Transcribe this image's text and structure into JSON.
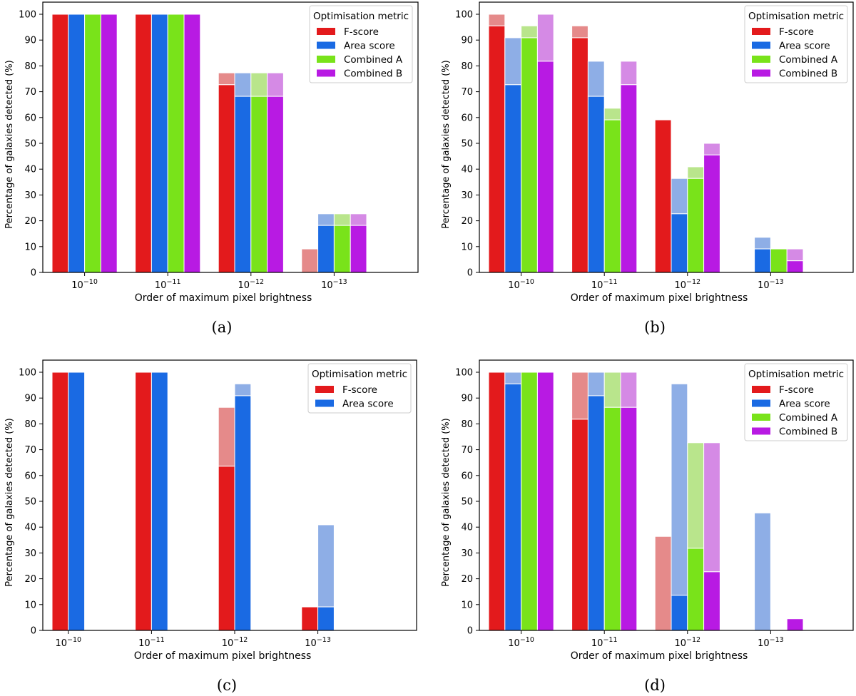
{
  "figure": {
    "axis_label_x": "Order of maximum pixel brightness",
    "axis_label_y": "Percentage of galaxies detected (%)",
    "legend_title": "Optimisation metric"
  },
  "colors": {
    "F-score": {
      "solid": "#e31a1c",
      "light": "#e58a8a"
    },
    "Area score": {
      "solid": "#1a6ae3",
      "light": "#8eaee6"
    },
    "Combined A": {
      "solid": "#79e31a",
      "light": "#b9e58c"
    },
    "Combined B": {
      "solid": "#b81ae3",
      "light": "#d58ae5"
    }
  },
  "chart_data": [
    {
      "panel_label": "(a)",
      "type": "bar",
      "stacked_note": "solid = lower value, light = upper value",
      "xlabel": "Order of maximum pixel brightness",
      "ylabel": "Percentage of galaxies detected (%)",
      "ylim": [
        0,
        100
      ],
      "yticks": [
        0,
        10,
        20,
        30,
        40,
        50,
        60,
        70,
        80,
        90,
        100
      ],
      "categories": [
        {
          "base": "10",
          "exp": "−10"
        },
        {
          "base": "10",
          "exp": "−11"
        },
        {
          "base": "10",
          "exp": "−12"
        },
        {
          "base": "10",
          "exp": "−13"
        }
      ],
      "legend": {
        "title": "Optimisation metric",
        "placement": "top-right"
      },
      "series": [
        {
          "name": "F-score",
          "solid": [
            100,
            100,
            72.7,
            0
          ],
          "light": [
            100,
            100,
            77.3,
            9.1
          ]
        },
        {
          "name": "Area score",
          "solid": [
            100,
            100,
            68.2,
            18.2
          ],
          "light": [
            100,
            100,
            77.3,
            22.7
          ]
        },
        {
          "name": "Combined A",
          "solid": [
            100,
            100,
            68.2,
            18.2
          ],
          "light": [
            100,
            100,
            77.3,
            22.7
          ]
        },
        {
          "name": "Combined B",
          "solid": [
            100,
            100,
            68.2,
            18.2
          ],
          "light": [
            100,
            100,
            77.3,
            22.7
          ]
        }
      ]
    },
    {
      "panel_label": "(b)",
      "type": "bar",
      "stacked_note": "solid = lower value, light = upper value",
      "xlabel": "Order of maximum pixel brightness",
      "ylabel": "Percentage of galaxies detected (%)",
      "ylim": [
        0,
        100
      ],
      "yticks": [
        0,
        10,
        20,
        30,
        40,
        50,
        60,
        70,
        80,
        90,
        100
      ],
      "categories": [
        {
          "base": "10",
          "exp": "−10"
        },
        {
          "base": "10",
          "exp": "−11"
        },
        {
          "base": "10",
          "exp": "−12"
        },
        {
          "base": "10",
          "exp": "−13"
        }
      ],
      "legend": {
        "title": "Optimisation metric",
        "placement": "top-right"
      },
      "series": [
        {
          "name": "F-score",
          "solid": [
            95.5,
            90.9,
            59.1,
            0
          ],
          "light": [
            100,
            95.5,
            59.1,
            0
          ]
        },
        {
          "name": "Area score",
          "solid": [
            72.7,
            68.2,
            22.7,
            9.1
          ],
          "light": [
            90.9,
            81.8,
            36.4,
            13.6
          ]
        },
        {
          "name": "Combined A",
          "solid": [
            90.9,
            59.1,
            36.4,
            9.1
          ],
          "light": [
            95.5,
            63.6,
            40.9,
            9.1
          ]
        },
        {
          "name": "Combined B",
          "solid": [
            81.8,
            72.7,
            45.5,
            4.5
          ],
          "light": [
            100,
            81.8,
            50,
            9.1
          ]
        }
      ]
    },
    {
      "panel_label": "(c)",
      "type": "bar",
      "stacked_note": "solid = lower value, light = upper value",
      "xlabel": "Order of maximum pixel brightness",
      "ylabel": "Percentage of galaxies detected (%)",
      "ylim": [
        0,
        100
      ],
      "yticks": [
        0,
        10,
        20,
        30,
        40,
        50,
        60,
        70,
        80,
        90,
        100
      ],
      "categories": [
        {
          "base": "10",
          "exp": "−10"
        },
        {
          "base": "10",
          "exp": "−11"
        },
        {
          "base": "10",
          "exp": "−12"
        },
        {
          "base": "10",
          "exp": "−13"
        }
      ],
      "legend": {
        "title": "Optimisation metric",
        "placement": "top-right"
      },
      "series": [
        {
          "name": "F-score",
          "solid": [
            100,
            100,
            63.6,
            9.1
          ],
          "light": [
            100,
            100,
            86.4,
            9.1
          ]
        },
        {
          "name": "Area score",
          "solid": [
            100,
            100,
            90.9,
            9.1
          ],
          "light": [
            100,
            100,
            95.5,
            40.9
          ]
        }
      ]
    },
    {
      "panel_label": "(d)",
      "type": "bar",
      "stacked_note": "solid = lower value, light = upper value",
      "xlabel": "Order of maximum pixel brightness",
      "ylabel": "Percentage of galaxies detected (%)",
      "ylim": [
        0,
        100
      ],
      "yticks": [
        0,
        10,
        20,
        30,
        40,
        50,
        60,
        70,
        80,
        90,
        100
      ],
      "categories": [
        {
          "base": "10",
          "exp": "−10"
        },
        {
          "base": "10",
          "exp": "−11"
        },
        {
          "base": "10",
          "exp": "−12"
        },
        {
          "base": "10",
          "exp": "−13"
        }
      ],
      "legend": {
        "title": "Optimisation metric",
        "placement": "top-right"
      },
      "series": [
        {
          "name": "F-score",
          "solid": [
            100,
            81.8,
            0,
            0
          ],
          "light": [
            100,
            100,
            36.4,
            0
          ]
        },
        {
          "name": "Area score",
          "solid": [
            95.5,
            90.9,
            13.6,
            0
          ],
          "light": [
            100,
            100,
            95.5,
            45.5
          ]
        },
        {
          "name": "Combined A",
          "solid": [
            100,
            86.4,
            31.8,
            0
          ],
          "light": [
            100,
            100,
            72.7,
            0
          ]
        },
        {
          "name": "Combined B",
          "solid": [
            100,
            86.4,
            22.7,
            4.5
          ],
          "light": [
            100,
            100,
            72.7,
            4.5
          ]
        }
      ]
    }
  ]
}
